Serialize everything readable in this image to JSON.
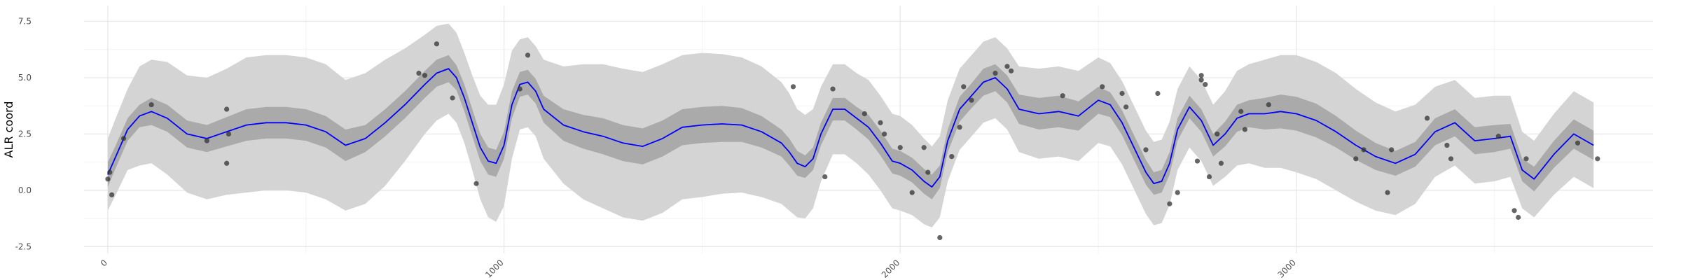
{
  "chart_data": {
    "type": "line",
    "title": "",
    "xlabel": "",
    "ylabel": "ALR coord",
    "xlim": [
      -60,
      3900
    ],
    "ylim": [
      -2.8,
      8.2
    ],
    "x_ticks": [
      0,
      1000,
      2000,
      3000
    ],
    "x_tick_labels": [
      "0",
      "1000",
      "2000",
      "3000"
    ],
    "y_ticks": [
      -2.5,
      0,
      2.5,
      5,
      7.5
    ],
    "y_tick_labels": [
      "-2.5",
      "0.0",
      "2.5",
      "5.0",
      "7.5"
    ],
    "grid": true,
    "legend": "none",
    "colors": {
      "mean_line": "#0000ff",
      "inner_band": "#aaaaaa",
      "outer_band": "#d4d4d4",
      "points": "#333333"
    },
    "mean_line": {
      "x": [
        0,
        20,
        50,
        80,
        110,
        150,
        200,
        250,
        300,
        350,
        400,
        450,
        500,
        550,
        600,
        650,
        700,
        750,
        800,
        830,
        860,
        880,
        900,
        920,
        940,
        960,
        980,
        1000,
        1020,
        1040,
        1060,
        1080,
        1100,
        1150,
        1200,
        1250,
        1300,
        1350,
        1400,
        1450,
        1500,
        1550,
        1600,
        1650,
        1700,
        1720,
        1740,
        1760,
        1780,
        1800,
        1830,
        1860,
        1890,
        1920,
        1950,
        1980,
        2000,
        2030,
        2060,
        2080,
        2100,
        2120,
        2150,
        2180,
        2210,
        2240,
        2270,
        2300,
        2350,
        2400,
        2450,
        2500,
        2530,
        2560,
        2590,
        2620,
        2640,
        2660,
        2680,
        2700,
        2730,
        2760,
        2790,
        2820,
        2850,
        2880,
        2920,
        2960,
        3000,
        3050,
        3100,
        3150,
        3200,
        3250,
        3300,
        3350,
        3400,
        3450,
        3500,
        3540,
        3570,
        3600,
        3650,
        3700,
        3750
      ],
      "y": [
        0.7,
        1.5,
        2.7,
        3.3,
        3.5,
        3.2,
        2.5,
        2.3,
        2.6,
        2.9,
        3.0,
        3.0,
        2.9,
        2.6,
        2.0,
        2.3,
        3.0,
        3.8,
        4.7,
        5.2,
        5.4,
        5.0,
        4.1,
        3.0,
        1.9,
        1.3,
        1.2,
        2.0,
        3.8,
        4.7,
        4.8,
        4.4,
        3.6,
        2.9,
        2.6,
        2.4,
        2.1,
        1.95,
        2.3,
        2.8,
        2.9,
        2.95,
        2.9,
        2.6,
        2.1,
        1.7,
        1.2,
        1.05,
        1.4,
        2.5,
        3.6,
        3.6,
        3.2,
        2.8,
        2.1,
        1.3,
        1.2,
        0.9,
        0.4,
        0.15,
        0.6,
        2.2,
        3.6,
        4.2,
        4.8,
        5.0,
        4.5,
        3.6,
        3.4,
        3.5,
        3.3,
        4.0,
        3.8,
        3.0,
        1.9,
        0.8,
        0.3,
        0.4,
        1.2,
        2.7,
        3.7,
        3.1,
        2.0,
        2.5,
        3.2,
        3.4,
        3.4,
        3.5,
        3.4,
        3.1,
        2.6,
        2.0,
        1.5,
        1.2,
        1.6,
        2.6,
        3.0,
        2.2,
        2.3,
        2.4,
        0.9,
        0.5,
        1.6,
        2.5,
        2.0
      ],
      "inner_halfwidth": [
        0.55,
        0.5,
        0.5,
        0.5,
        0.6,
        0.6,
        0.6,
        0.6,
        0.65,
        0.7,
        0.7,
        0.7,
        0.7,
        0.7,
        0.7,
        0.6,
        0.6,
        0.6,
        0.6,
        0.6,
        0.6,
        0.55,
        0.6,
        0.6,
        0.6,
        0.6,
        0.6,
        0.6,
        0.6,
        0.55,
        0.55,
        0.55,
        0.6,
        0.7,
        0.75,
        0.8,
        0.8,
        0.8,
        0.8,
        0.8,
        0.8,
        0.8,
        0.75,
        0.7,
        0.6,
        0.6,
        0.55,
        0.5,
        0.5,
        0.5,
        0.5,
        0.5,
        0.5,
        0.55,
        0.55,
        0.55,
        0.55,
        0.55,
        0.55,
        0.55,
        0.5,
        0.5,
        0.55,
        0.55,
        0.6,
        0.6,
        0.6,
        0.65,
        0.7,
        0.7,
        0.65,
        0.6,
        0.55,
        0.55,
        0.55,
        0.55,
        0.5,
        0.5,
        0.5,
        0.5,
        0.5,
        0.5,
        0.5,
        0.55,
        0.6,
        0.6,
        0.7,
        0.75,
        0.75,
        0.75,
        0.7,
        0.65,
        0.6,
        0.55,
        0.55,
        0.6,
        0.6,
        0.6,
        0.6,
        0.55,
        0.5,
        0.55,
        0.6,
        0.65,
        0.65
      ],
      "outer_halfwidth": [
        1.6,
        1.7,
        1.8,
        2.2,
        2.3,
        2.5,
        2.6,
        2.7,
        2.8,
        3.0,
        3.0,
        3.0,
        3.0,
        3.0,
        2.9,
        2.9,
        2.8,
        2.5,
        2.2,
        2.1,
        2.0,
        2.0,
        2.0,
        2.1,
        2.3,
        2.5,
        2.6,
        2.7,
        2.4,
        2.0,
        2.0,
        2.0,
        2.2,
        2.6,
        3.0,
        3.2,
        3.3,
        3.3,
        3.3,
        3.2,
        3.2,
        3.1,
        3.0,
        2.9,
        2.7,
        2.6,
        2.4,
        2.3,
        2.2,
        2.1,
        2.0,
        2.0,
        2.0,
        2.1,
        2.1,
        2.1,
        2.1,
        2.0,
        1.9,
        1.8,
        1.8,
        1.8,
        1.8,
        1.8,
        1.8,
        1.8,
        1.8,
        1.9,
        2.0,
        2.0,
        2.0,
        1.9,
        1.85,
        1.85,
        1.85,
        1.85,
        1.85,
        1.85,
        1.85,
        1.8,
        1.8,
        1.8,
        1.8,
        1.9,
        2.1,
        2.2,
        2.4,
        2.5,
        2.6,
        2.6,
        2.6,
        2.5,
        2.4,
        2.3,
        2.2,
        2.0,
        1.9,
        1.9,
        1.9,
        1.8,
        1.7,
        1.7,
        1.8,
        1.9,
        1.9
      ]
    },
    "points": {
      "x": [
        0,
        5,
        10,
        40,
        110,
        250,
        300,
        300,
        305,
        785,
        800,
        830,
        870,
        930,
        1040,
        1060,
        1730,
        1810,
        1830,
        1910,
        1950,
        1960,
        2000,
        2030,
        2060,
        2070,
        2100,
        2130,
        2150,
        2160,
        2180,
        2240,
        2270,
        2280,
        2410,
        2510,
        2560,
        2570,
        2620,
        2650,
        2680,
        2700,
        2750,
        2760,
        2760,
        2770,
        2780,
        2800,
        2810,
        2860,
        2870,
        2930,
        3150,
        3170,
        3230,
        3240,
        3330,
        3380,
        3390,
        3510,
        3550,
        3560,
        3580,
        3710,
        3760
      ],
      "y": [
        0.5,
        0.8,
        -0.2,
        2.3,
        3.8,
        2.2,
        1.2,
        3.6,
        2.5,
        5.2,
        5.1,
        6.5,
        4.1,
        0.3,
        4.5,
        6.0,
        4.6,
        0.6,
        4.5,
        3.4,
        3.0,
        2.5,
        1.9,
        -0.1,
        1.9,
        0.8,
        -2.1,
        1.5,
        2.8,
        4.6,
        4.0,
        5.2,
        5.5,
        5.3,
        4.2,
        4.6,
        4.3,
        3.7,
        1.8,
        4.3,
        -0.6,
        -0.1,
        1.3,
        4.9,
        5.1,
        4.7,
        0.6,
        2.5,
        1.2,
        3.5,
        2.7,
        3.8,
        1.4,
        1.8,
        -0.1,
        1.8,
        3.2,
        2.0,
        1.4,
        2.4,
        -0.9,
        -1.2,
        1.4,
        2.1,
        1.4
      ]
    }
  }
}
